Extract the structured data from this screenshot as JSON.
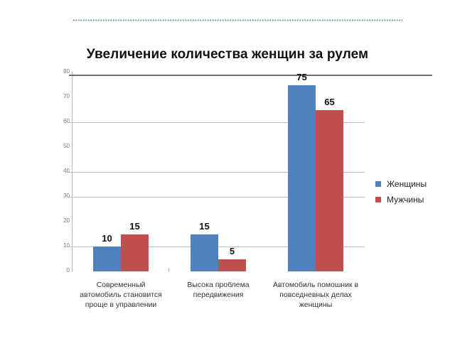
{
  "decoration": {
    "dotted_line_color": "#3f8a7a"
  },
  "chart_data": {
    "type": "bar",
    "title": "Увеличение количества женщин за рулем",
    "xlabel": "",
    "ylabel": "",
    "ylim": [
      0,
      80
    ],
    "yticks": [
      "0",
      "10",
      "20",
      "30",
      "40",
      "50",
      "60",
      "70",
      "80"
    ],
    "categories": [
      "Современный автомобиль становится проще в управлении",
      "Высока проблема передвижения",
      "Автомобиль помошник в повседневных делах женщины"
    ],
    "category_lines": [
      [
        "Современный",
        "автомобиль становится",
        "проще в управлении"
      ],
      [
        "Высока проблема",
        "передвижения"
      ],
      [
        "Автомобиль помошник в",
        "повседневных делах",
        "женщины"
      ]
    ],
    "series": [
      {
        "name": "Женщины",
        "color": "#4f81bd",
        "values": [
          10,
          15,
          75
        ]
      },
      {
        "name": "Мужчины",
        "color": "#c0504d",
        "values": [
          15,
          5,
          65
        ]
      }
    ],
    "data_labels": true,
    "legend_position": "right",
    "grid": true
  }
}
